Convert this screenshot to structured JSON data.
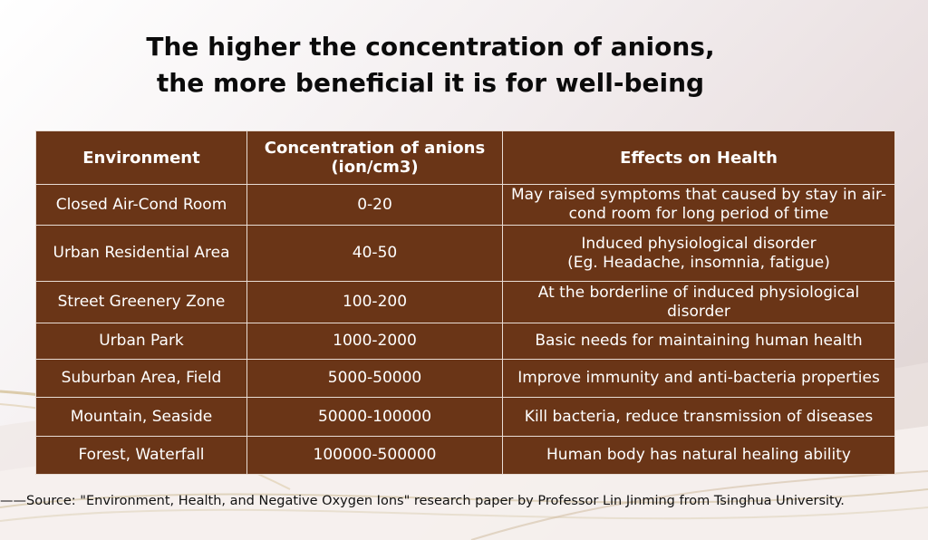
{
  "title": {
    "line1": "The higher the concentration of anions,",
    "line2": "the more beneficial it is for well-being"
  },
  "table": {
    "headers": [
      "Environment",
      "Concentration of anions (ion/cm3)",
      "Effects on Health"
    ],
    "rows": [
      {
        "environment": "Closed Air-Cond Room",
        "concentration": "0-20",
        "effect": "May raised symptoms that caused by stay in air-cond room for long period of time"
      },
      {
        "environment": "Urban Residential Area",
        "concentration": "40-50",
        "effect": "Induced physiological disorder",
        "effect_line2": "(Eg. Headache, insomnia, fatigue)"
      },
      {
        "environment": "Street Greenery Zone",
        "concentration": "100-200",
        "effect": "At the borderline of induced physiological disorder"
      },
      {
        "environment": "Urban Park",
        "concentration": "1000-2000",
        "effect": "Basic needs for maintaining human health"
      },
      {
        "environment": "Suburban Area, Field",
        "concentration": "5000-50000",
        "effect": "Improve immunity and anti-bacteria properties"
      },
      {
        "environment": "Mountain, Seaside",
        "concentration": "50000-100000",
        "effect": "Kill bacteria, reduce transmission of diseases"
      },
      {
        "environment": "Forest, Waterfall",
        "concentration": "100000-500000",
        "effect": "Human body has natural healing ability"
      }
    ]
  },
  "source": "——Source: \"Environment, Health, and Negative Oxygen Ions\" research paper by Professor Lin Jinming from Tsinghua University.",
  "colors": {
    "table_fill": "#6a3517",
    "table_border": "#e8dcd4",
    "table_text": "#ffffff",
    "title_text": "#0b0b0b"
  }
}
